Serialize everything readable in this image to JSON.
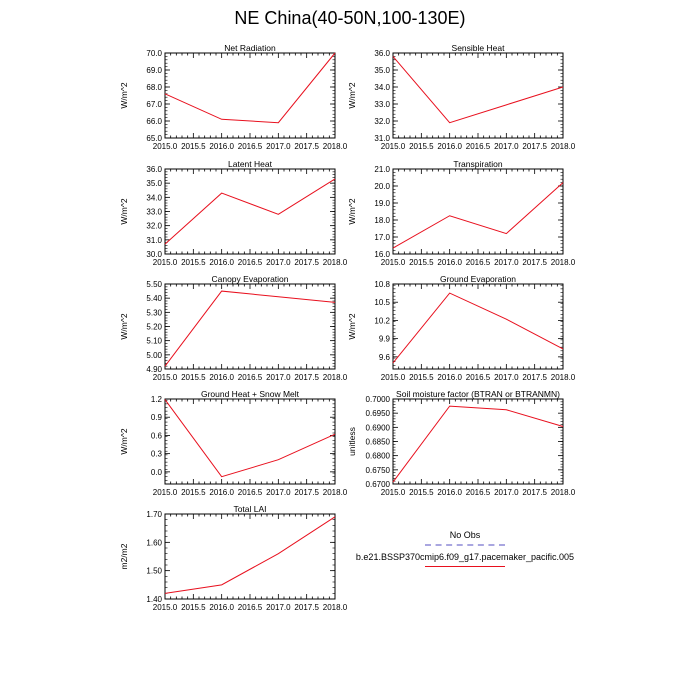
{
  "title": "NE China(40-50N,100-130E)",
  "colors": {
    "model": "#e8101e",
    "obs": "#a9a6e0",
    "axis": "#000000"
  },
  "legend": {
    "entries": [
      {
        "label": "No Obs",
        "color": "#a9a6e0",
        "style": "dashed"
      },
      {
        "label": "b.e21.BSSP370cmip6.f09_g17.pacemaker_pacific.005",
        "color": "#e8101e",
        "style": "solid"
      }
    ]
  },
  "chart_data": [
    {
      "type": "line",
      "title": "Net Radiation",
      "ylabel": "W/m^2",
      "x": [
        2015,
        2016,
        2017,
        2018
      ],
      "values": [
        67.6,
        66.1,
        65.9,
        70.0
      ],
      "xlim": [
        2015,
        2018
      ],
      "ylim": [
        65,
        70
      ],
      "xticks": [
        "2015.0",
        "2015.5",
        "2016.0",
        "2016.5",
        "2017.0",
        "2017.5",
        "2018.0"
      ],
      "yticks": [
        "65.0",
        "66.0",
        "67.0",
        "68.0",
        "69.0",
        "70.0"
      ],
      "ytick_values": [
        65,
        66,
        67,
        68,
        69,
        70
      ]
    },
    {
      "type": "line",
      "title": "Sensible Heat",
      "ylabel": "W/m^2",
      "x": [
        2015,
        2016,
        2017,
        2018
      ],
      "values": [
        35.8,
        31.9,
        32.95,
        34.0
      ],
      "xlim": [
        2015,
        2018
      ],
      "ylim": [
        31,
        36
      ],
      "xticks": [
        "2015.0",
        "2015.5",
        "2016.0",
        "2016.5",
        "2017.0",
        "2017.5",
        "2018.0"
      ],
      "yticks": [
        "31.0",
        "32.0",
        "33.0",
        "34.0",
        "35.0",
        "36.0"
      ],
      "ytick_values": [
        31,
        32,
        33,
        34,
        35,
        36
      ]
    },
    {
      "type": "line",
      "title": "Latent Heat",
      "ylabel": "W/m^2",
      "x": [
        2015,
        2016,
        2017,
        2018
      ],
      "values": [
        30.7,
        34.3,
        32.8,
        35.3
      ],
      "xlim": [
        2015,
        2018
      ],
      "ylim": [
        30,
        36
      ],
      "xticks": [
        "2015.0",
        "2015.5",
        "2016.0",
        "2016.5",
        "2017.0",
        "2017.5",
        "2018.0"
      ],
      "yticks": [
        "30.0",
        "31.0",
        "32.0",
        "33.0",
        "34.0",
        "35.0",
        "36.0"
      ],
      "ytick_values": [
        30,
        31,
        32,
        33,
        34,
        35,
        36
      ]
    },
    {
      "type": "line",
      "title": "Transpiration",
      "ylabel": "W/m^2",
      "x": [
        2015,
        2016,
        2017,
        2018
      ],
      "values": [
        16.35,
        18.25,
        17.2,
        20.2
      ],
      "xlim": [
        2015,
        2018
      ],
      "ylim": [
        16,
        21
      ],
      "xticks": [
        "2015.0",
        "2015.5",
        "2016.0",
        "2016.5",
        "2017.0",
        "2017.5",
        "2018.0"
      ],
      "yticks": [
        "16.0",
        "17.0",
        "18.0",
        "19.0",
        "20.0",
        "21.0"
      ],
      "ytick_values": [
        16,
        17,
        18,
        19,
        20,
        21
      ]
    },
    {
      "type": "line",
      "title": "Canopy Evaporation",
      "ylabel": "W/m^2",
      "x": [
        2015,
        2016,
        2017,
        2018
      ],
      "values": [
        4.92,
        5.45,
        5.41,
        5.37
      ],
      "xlim": [
        2015,
        2018
      ],
      "ylim": [
        4.9,
        5.5
      ],
      "xticks": [
        "2015.0",
        "2015.5",
        "2016.0",
        "2016.5",
        "2017.0",
        "2017.5",
        "2018.0"
      ],
      "yticks": [
        "4.90",
        "5.00",
        "5.10",
        "5.20",
        "5.30",
        "5.40",
        "5.50"
      ],
      "ytick_values": [
        4.9,
        5.0,
        5.1,
        5.2,
        5.3,
        5.4,
        5.5
      ]
    },
    {
      "type": "line",
      "title": "Ground Evaporation",
      "ylabel": "W/m^2",
      "x": [
        2015,
        2016,
        2017,
        2018
      ],
      "values": [
        9.5,
        10.65,
        10.22,
        9.73
      ],
      "xlim": [
        2015,
        2018
      ],
      "ylim": [
        9.4,
        10.8
      ],
      "xticks": [
        "2015.0",
        "2015.5",
        "2016.0",
        "2016.5",
        "2017.0",
        "2017.5",
        "2018.0"
      ],
      "yticks": [
        "9.6",
        "9.9",
        "10.2",
        "10.5",
        "10.8"
      ],
      "ytick_values": [
        9.6,
        9.9,
        10.2,
        10.5,
        10.8
      ]
    },
    {
      "type": "line",
      "title": "Ground Heat + Snow Melt",
      "ylabel": "W/m^2",
      "x": [
        2015,
        2016,
        2017,
        2018
      ],
      "values": [
        1.19,
        -0.08,
        0.2,
        0.62
      ],
      "xlim": [
        2015,
        2018
      ],
      "ylim": [
        -0.2,
        1.2
      ],
      "xticks": [
        "2015.0",
        "2015.5",
        "2016.0",
        "2016.5",
        "2017.0",
        "2017.5",
        "2018.0"
      ],
      "yticks": [
        "0.0",
        "0.3",
        "0.6",
        "0.9",
        "1.2"
      ],
      "ytick_values": [
        0.0,
        0.3,
        0.6,
        0.9,
        1.2
      ]
    },
    {
      "type": "line",
      "title": "Soil moisture factor (BTRAN or BTRANMN)",
      "ylabel": "unitless",
      "x": [
        2015,
        2016,
        2017,
        2018
      ],
      "values": [
        0.6707,
        0.6975,
        0.6962,
        0.6903
      ],
      "xlim": [
        2015,
        2018
      ],
      "ylim": [
        0.67,
        0.7
      ],
      "xticks": [
        "2015.0",
        "2015.5",
        "2016.0",
        "2016.5",
        "2017.0",
        "2017.5",
        "2018.0"
      ],
      "yticks": [
        "0.6700",
        "0.6750",
        "0.6800",
        "0.6850",
        "0.6900",
        "0.6950",
        "0.7000"
      ],
      "ytick_values": [
        0.67,
        0.675,
        0.68,
        0.685,
        0.69,
        0.695,
        0.7
      ]
    },
    {
      "type": "line",
      "title": "Total LAI",
      "ylabel": "m2/m2",
      "x": [
        2015,
        2016,
        2017,
        2018
      ],
      "values": [
        1.42,
        1.45,
        1.56,
        1.69
      ],
      "xlim": [
        2015,
        2018
      ],
      "ylim": [
        1.4,
        1.7
      ],
      "xticks": [
        "2015.0",
        "2015.5",
        "2016.0",
        "2016.5",
        "2017.0",
        "2017.5",
        "2018.0"
      ],
      "yticks": [
        "1.40",
        "1.50",
        "1.60",
        "1.70"
      ],
      "ytick_values": [
        1.4,
        1.5,
        1.6,
        1.7
      ]
    }
  ]
}
